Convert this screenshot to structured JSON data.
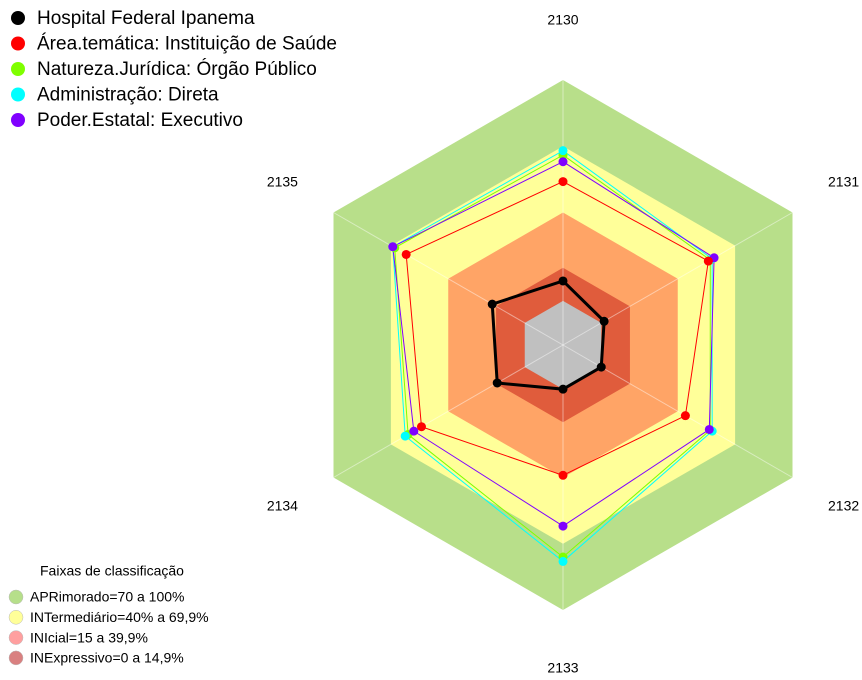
{
  "chart_data": {
    "type": "radar",
    "categories": [
      "2130",
      "2131",
      "2132",
      "2133",
      "2134",
      "2135"
    ],
    "rlim": [
      -20,
      100
    ],
    "series": [
      {
        "name": "Natureza.Jurídica: Órgão Público",
        "color": "#7fff00",
        "values": [
          66,
          57,
          57,
          76,
          61,
          68
        ]
      },
      {
        "name": "Administração: Direta",
        "color": "#00ffff",
        "values": [
          68,
          58,
          58,
          78,
          62.5,
          69
        ]
      },
      {
        "name": "Poder.Estatal: Executivo",
        "color": "#8000ff",
        "values": [
          63,
          59,
          56.5,
          62,
          58,
          69
        ]
      },
      {
        "name": "Área.temática: Instituição de Saúde",
        "color": "#ff0000",
        "values": [
          54,
          56,
          44,
          39,
          54,
          62
        ]
      },
      {
        "name": "Hospital Federal Ipanema",
        "color": "#000000",
        "values": [
          9,
          1.5,
          0,
          0,
          14.4,
          17
        ]
      }
    ],
    "legend_order": [
      4,
      3,
      0,
      1,
      2
    ],
    "bands_title": "Faixas de classificação",
    "bands": [
      {
        "label": "APRimorado=70 a 100%",
        "from": 70,
        "to": 100,
        "color": "#b6df8a",
        "fill": "#b8df8a"
      },
      {
        "label": "INTermediário=40% a 69,9%",
        "from": 40,
        "to": 70,
        "color": "#ffff99",
        "fill": "#ffff99"
      },
      {
        "label": "INIcial=15 a 39,9%",
        "from": 15,
        "to": 40,
        "color": "#ff9f9f",
        "fill": "#ffa466"
      },
      {
        "label": "INExpressivo=0 a 14,9%",
        "from": 0,
        "to": 15,
        "color": "#d98080",
        "fill": "#e05c3c"
      }
    ],
    "center_fill": "#c0c0c0"
  }
}
